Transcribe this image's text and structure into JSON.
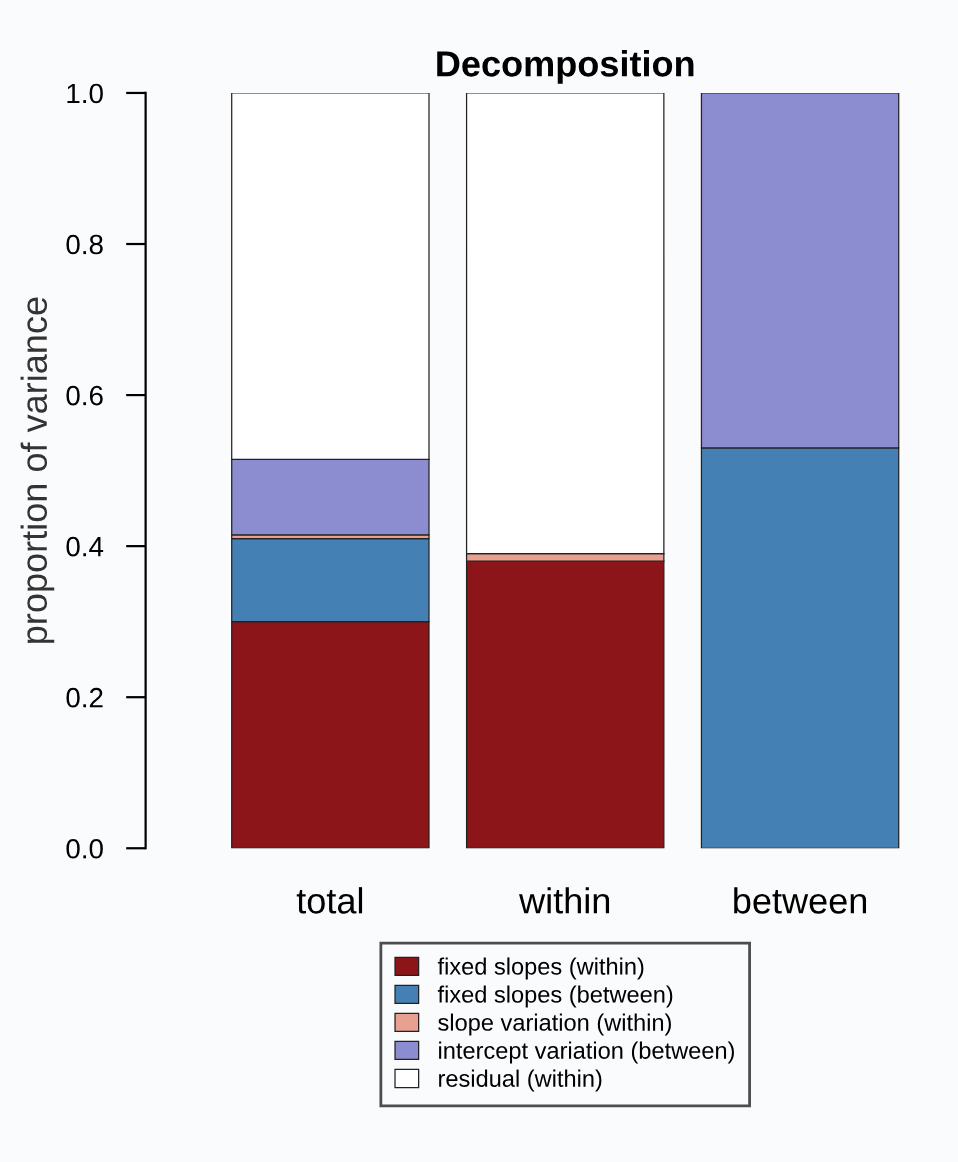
{
  "chart_data": {
    "type": "bar",
    "title": "Decomposition",
    "ylabel": "proportion of variance",
    "stacked": true,
    "categories": [
      "total",
      "within",
      "between"
    ],
    "series": [
      {
        "name": "fixed slopes (within)",
        "color": "#8b1518",
        "values": [
          0.3,
          0.38,
          0
        ]
      },
      {
        "name": "fixed slopes (between)",
        "color": "#4480b3",
        "values": [
          0.11,
          0,
          0.53
        ]
      },
      {
        "name": "slope variation (within)",
        "color": "#e8a090",
        "values": [
          0.005,
          0.01,
          0
        ]
      },
      {
        "name": "intercept variation (between)",
        "color": "#8c8cd0",
        "values": [
          0.1,
          0,
          0.47
        ]
      },
      {
        "name": "residual (within)",
        "color": "#ffffff",
        "values": [
          0.485,
          0.61,
          0
        ]
      }
    ],
    "ylim": [
      0,
      1
    ],
    "yticks": [
      {
        "value": 0,
        "label": "0.0"
      },
      0.2,
      0.4,
      0.6,
      0.8,
      {
        "value": 1,
        "label": "1.0"
      }
    ],
    "grid": false,
    "legend": "bottom"
  }
}
